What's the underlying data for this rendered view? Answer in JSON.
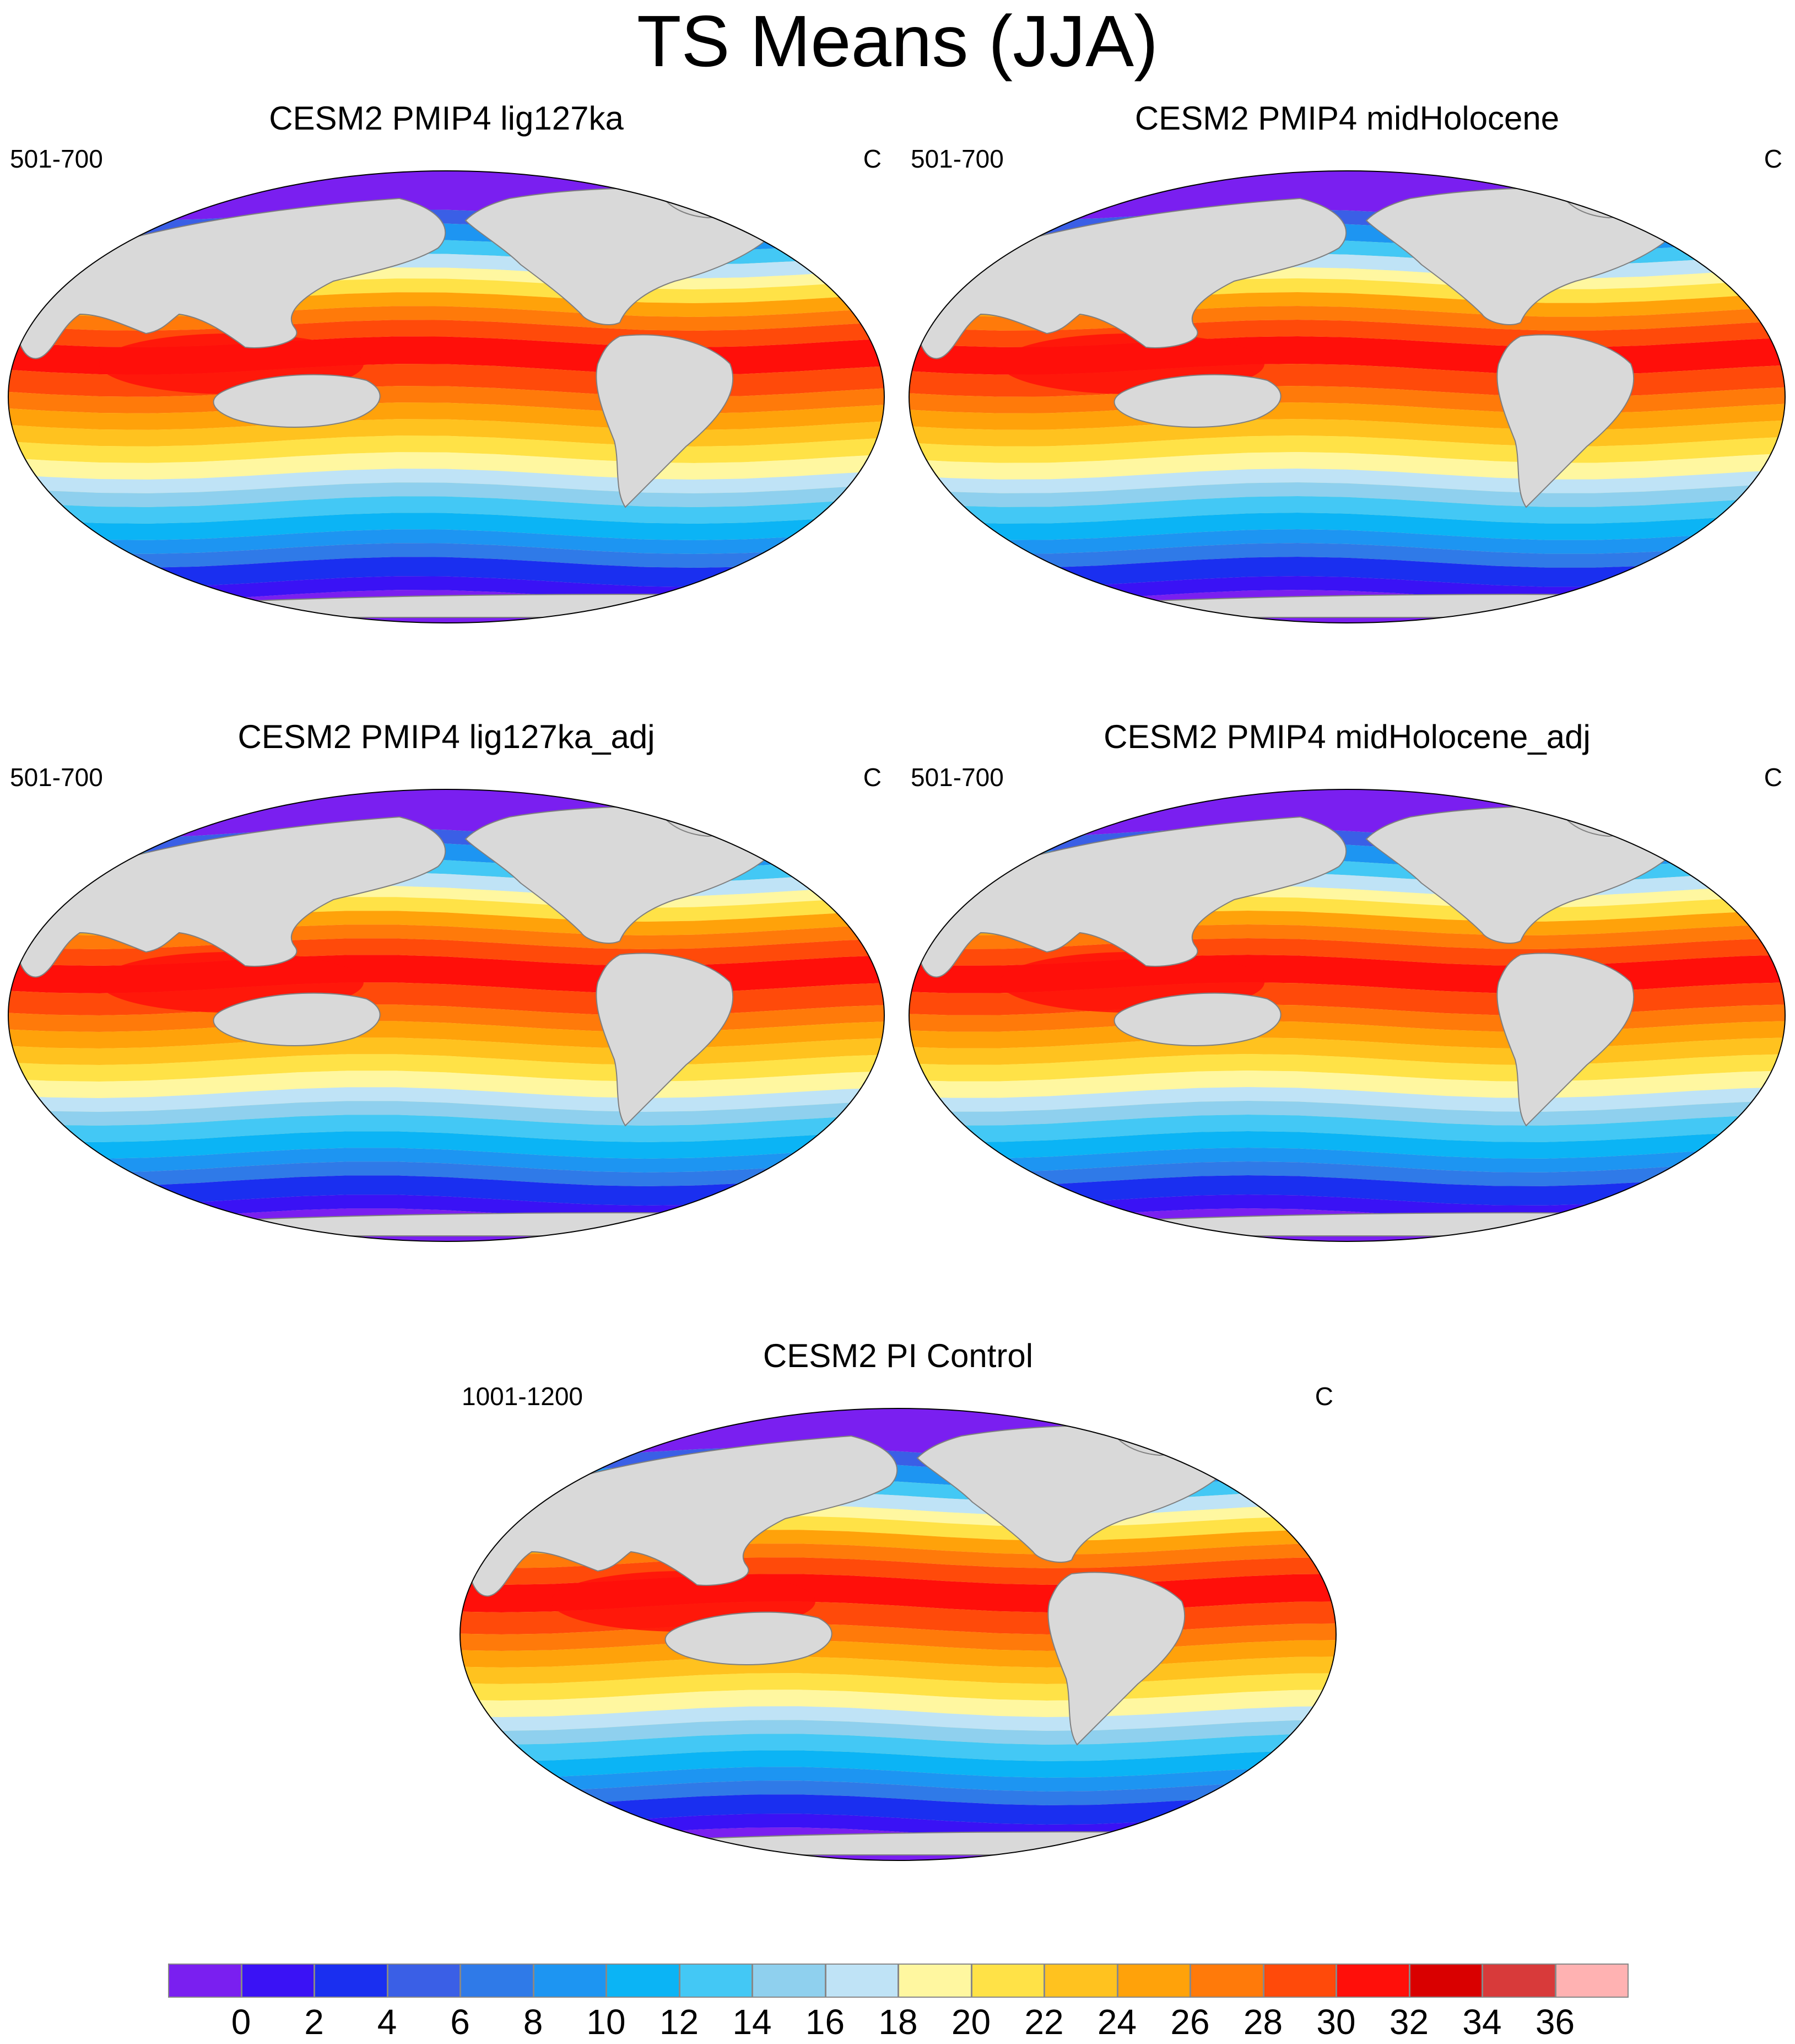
{
  "figure": {
    "title": "TS Means (JJA)"
  },
  "panels": [
    {
      "title": "CESM2 PMIP4 lig127ka",
      "years": "501-700",
      "units": "C"
    },
    {
      "title": "CESM2 PMIP4 midHolocene",
      "years": "501-700",
      "units": "C"
    },
    {
      "title": "CESM2 PMIP4 lig127ka_adj",
      "years": "501-700",
      "units": "C"
    },
    {
      "title": "CESM2 PMIP4 midHolocene_adj",
      "years": "501-700",
      "units": "C"
    },
    {
      "title": "CESM2 PI Control",
      "years": "1001-1200",
      "units": "C"
    }
  ],
  "map": {
    "projection": "Robinson",
    "land_color": "#d9d9d9",
    "coastline_color": "#7f7f7f"
  },
  "colorbar": {
    "colors": [
      "#7a1ff0",
      "#3a12f5",
      "#1a2ff0",
      "#3a5fe6",
      "#2f7ae8",
      "#1d95f2",
      "#0bb4f5",
      "#43c8f5",
      "#8fd0ee",
      "#bfe3f6",
      "#fff7a0",
      "#ffe247",
      "#ffc21f",
      "#ffa20a",
      "#ff7a0a",
      "#ff4a0a",
      "#ff0f0a",
      "#d90000",
      "#d83a3a",
      "#ffb2b2"
    ],
    "labels": [
      "0",
      "2",
      "4",
      "6",
      "8",
      "10",
      "12",
      "14",
      "16",
      "18",
      "20",
      "22",
      "24",
      "26",
      "28",
      "30",
      "32",
      "34",
      "36"
    ]
  }
}
